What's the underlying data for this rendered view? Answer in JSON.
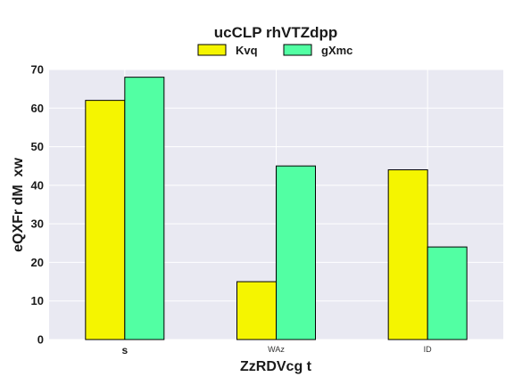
{
  "chart_data": {
    "type": "bar",
    "title": "ucCLP rhVTZdpp",
    "xlabel": "ZzRDVcg t",
    "ylabel": "eQXFr dM  xw",
    "categories": [
      "s",
      "WAz",
      "ID"
    ],
    "category_label_styles": [
      "bold",
      "small",
      "small"
    ],
    "series": [
      {
        "name": "Kvq",
        "color": "#f5f500",
        "values": [
          62,
          15,
          44
        ]
      },
      {
        "name": "gXmc",
        "color": "#52ffa3",
        "values": [
          68,
          45,
          24
        ]
      }
    ],
    "ylim": [
      0,
      70
    ],
    "yticks": [
      "0",
      "10",
      "20",
      "30",
      "40",
      "50",
      "60",
      "70"
    ],
    "grid": true,
    "legend": "top-center",
    "plot_background": "#e9e9f2",
    "gridline_color": "#ffffff",
    "bar_edge_color": "#000000"
  }
}
